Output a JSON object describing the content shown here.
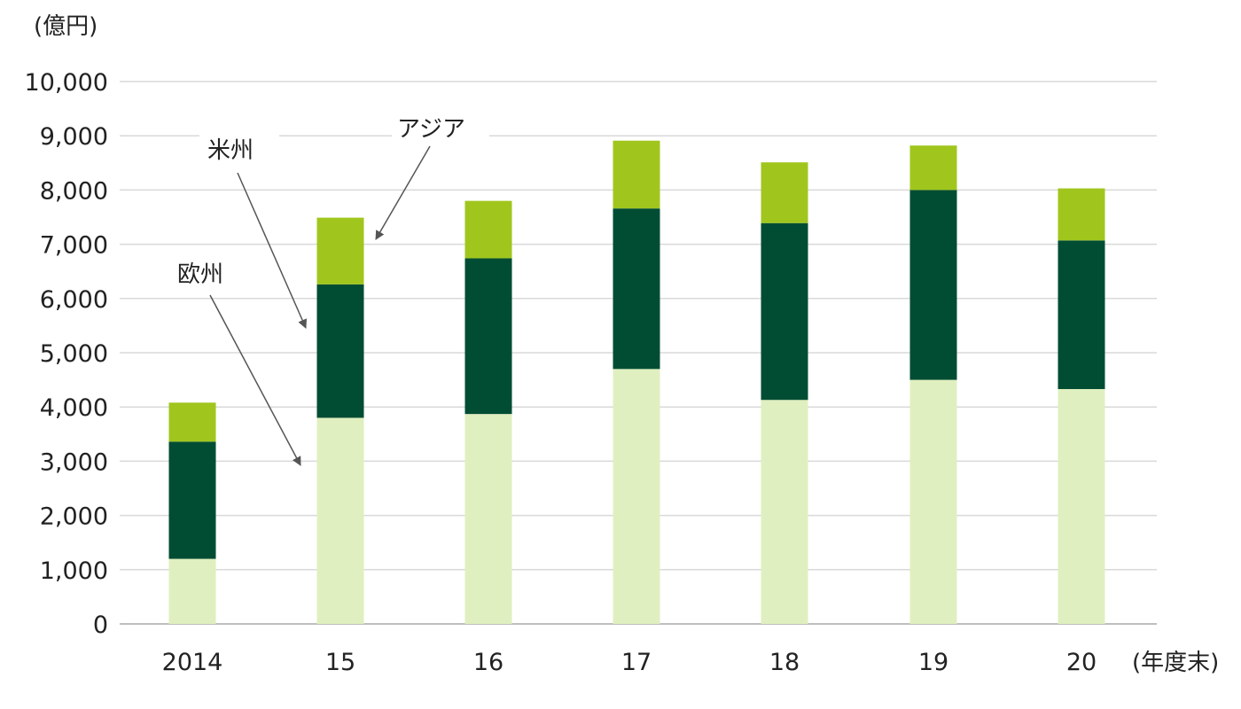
{
  "chart_data": {
    "type": "bar",
    "stacked": true,
    "categories": [
      "2014",
      "15",
      "16",
      "17",
      "18",
      "19",
      "20"
    ],
    "series": [
      {
        "name": "欧州",
        "color": "#e0efbf",
        "values": [
          1200,
          3800,
          3870,
          4700,
          4130,
          4500,
          4330
        ]
      },
      {
        "name": "米州",
        "color": "#004d33",
        "values": [
          2160,
          2460,
          2870,
          2960,
          3260,
          3500,
          2740
        ]
      },
      {
        "name": "アジア",
        "color": "#a0c61e",
        "values": [
          720,
          1230,
          1060,
          1250,
          1120,
          820,
          960
        ]
      }
    ],
    "y_ticks": [
      "0",
      "1,000",
      "2,000",
      "3,000",
      "4,000",
      "5,000",
      "6,000",
      "7,000",
      "8,000",
      "9,000",
      "10,000"
    ],
    "ylim": [
      0,
      10000
    ],
    "ylabel": "(億円)",
    "xlabel": "(年度末)",
    "grid": true,
    "legend": "annotations with arrows",
    "gridline_color": "#d9d9d9",
    "axis_line_color": "#bfbfbf",
    "arrow_color": "#555555"
  }
}
